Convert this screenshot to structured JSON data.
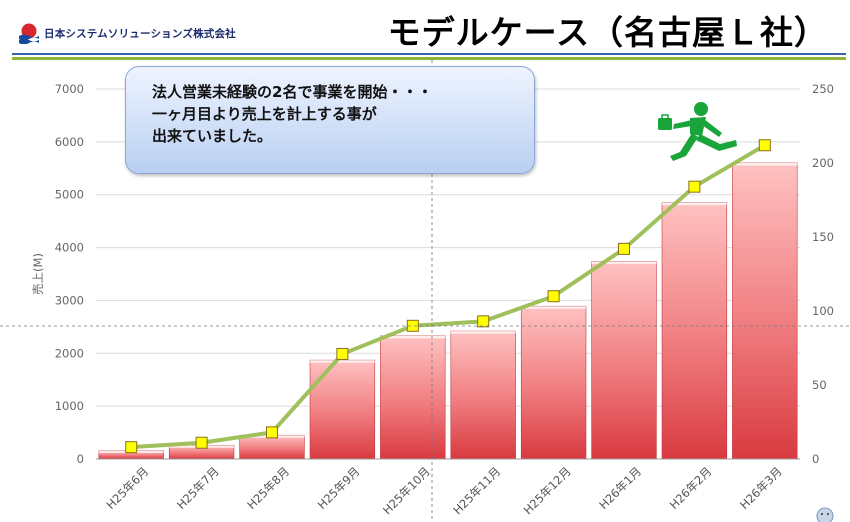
{
  "header": {
    "logo_text": "日本システムソリューションズ株式会社",
    "title": "モデルケース（名古屋Ｌ社）"
  },
  "callout": {
    "lines": [
      "法人営業未経験の2名で事業を開始・・・",
      "一ヶ月目より売上を計上する事が",
      "出来ていました。"
    ]
  },
  "colors": {
    "bar": "#e0474c",
    "line": "#9fc05a",
    "marker": "#ffff00",
    "rule_blue": "#3b5fa8",
    "rule_green": "#8db33a",
    "logo_red": "#d7262e",
    "logo_blue": "#1a4aa0"
  },
  "icons": [
    "logo-icon",
    "jumping-businessman-icon",
    "help-icon"
  ],
  "chart_data": {
    "type": "bar",
    "categories": [
      "H25年6月",
      "H25年7月",
      "H25年8月",
      "H25年9月",
      "H25年10月",
      "H25年11月",
      "H25年12月",
      "H26年1月",
      "H26年2月",
      "H26年3月"
    ],
    "series": [
      {
        "type": "bar",
        "axis": "left",
        "values": [
          160,
          260,
          450,
          1870,
          2330,
          2420,
          2890,
          3740,
          4850,
          5600
        ]
      },
      {
        "type": "line",
        "axis": "right",
        "values": [
          8,
          11,
          18,
          71,
          90,
          93,
          110,
          142,
          184,
          212
        ]
      }
    ],
    "ylabel": "売上(M)",
    "ylim": [
      0,
      7000
    ],
    "yticks": [
      "0",
      "1000",
      "2000",
      "3000",
      "4000",
      "5000",
      "6000",
      "7000"
    ],
    "y2lim": [
      0,
      250
    ],
    "y2ticks": [
      "0",
      "50",
      "100",
      "150",
      "200",
      "250"
    ],
    "grid": true
  }
}
